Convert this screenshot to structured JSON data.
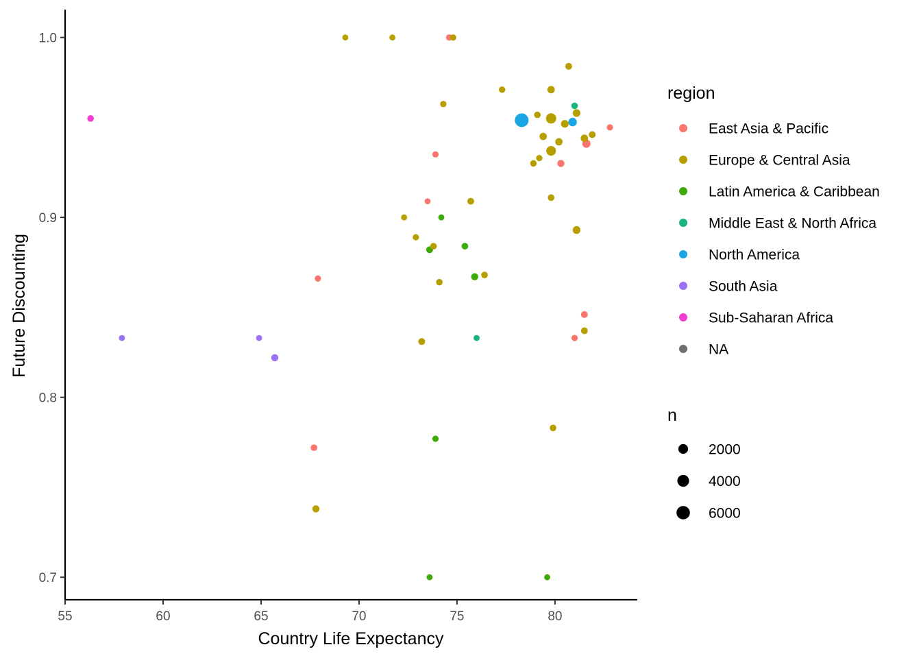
{
  "chart_data": {
    "type": "scatter",
    "title": "",
    "xlabel": "Country Life Expectancy",
    "ylabel": "Future Discounting",
    "xlim": [
      55,
      84.2
    ],
    "ylim": [
      0.6875,
      1.0155
    ],
    "xticks": [
      55,
      60,
      65,
      70,
      75,
      80
    ],
    "yticks": [
      0.7,
      0.8,
      0.9,
      1.0
    ],
    "xtick_labels": [
      "55",
      "60",
      "65",
      "70",
      "75",
      "80"
    ],
    "ytick_labels": [
      "0.7",
      "0.8",
      "0.9",
      "1.0"
    ],
    "grid": false,
    "legend_position": "right",
    "color_legend": {
      "title": "region",
      "entries": [
        {
          "label": "East Asia & Pacific",
          "color": "#F8766D"
        },
        {
          "label": "Europe & Central Asia",
          "color": "#B79F00"
        },
        {
          "label": "Latin America & Caribbean",
          "color": "#3DAA0A"
        },
        {
          "label": "Middle East & North Africa",
          "color": "#17B57D"
        },
        {
          "label": "North America",
          "color": "#19A6E4"
        },
        {
          "label": "South Asia",
          "color": "#9D71F4"
        },
        {
          "label": "Sub-Saharan Africa",
          "color": "#F23DD2"
        },
        {
          "label": "NA",
          "color": "#6E6E6E"
        }
      ]
    },
    "size_legend": {
      "title": "n",
      "entries": [
        {
          "label": "2000",
          "value": 2000
        },
        {
          "label": "4000",
          "value": 4000
        },
        {
          "label": "6000",
          "value": 6000
        }
      ]
    },
    "points": [
      {
        "x": 56.3,
        "y": 0.955,
        "region": "Sub-Saharan Africa",
        "n": 300
      },
      {
        "x": 57.9,
        "y": 0.833,
        "region": "South Asia",
        "n": 150
      },
      {
        "x": 64.9,
        "y": 0.833,
        "region": "South Asia",
        "n": 150
      },
      {
        "x": 65.7,
        "y": 0.822,
        "region": "South Asia",
        "n": 500
      },
      {
        "x": 67.7,
        "y": 0.772,
        "region": "East Asia & Pacific",
        "n": 300
      },
      {
        "x": 67.8,
        "y": 0.738,
        "region": "Europe & Central Asia",
        "n": 500
      },
      {
        "x": 67.9,
        "y": 0.866,
        "region": "East Asia & Pacific",
        "n": 200
      },
      {
        "x": 69.3,
        "y": 1.0,
        "region": "Europe & Central Asia",
        "n": 150
      },
      {
        "x": 71.7,
        "y": 1.0,
        "region": "Europe & Central Asia",
        "n": 150
      },
      {
        "x": 72.3,
        "y": 0.9,
        "region": "Europe & Central Asia",
        "n": 150
      },
      {
        "x": 72.9,
        "y": 0.889,
        "region": "Europe & Central Asia",
        "n": 200
      },
      {
        "x": 73.2,
        "y": 0.831,
        "region": "Europe & Central Asia",
        "n": 400
      },
      {
        "x": 73.5,
        "y": 0.909,
        "region": "East Asia & Pacific",
        "n": 150
      },
      {
        "x": 73.6,
        "y": 0.882,
        "region": "Latin America & Caribbean",
        "n": 400
      },
      {
        "x": 73.6,
        "y": 0.7,
        "region": "Latin America & Caribbean",
        "n": 150
      },
      {
        "x": 73.8,
        "y": 0.884,
        "region": "Europe & Central Asia",
        "n": 300
      },
      {
        "x": 73.9,
        "y": 0.935,
        "region": "East Asia & Pacific",
        "n": 200
      },
      {
        "x": 73.9,
        "y": 0.777,
        "region": "Latin America & Caribbean",
        "n": 200
      },
      {
        "x": 74.1,
        "y": 0.864,
        "region": "Europe & Central Asia",
        "n": 300
      },
      {
        "x": 74.2,
        "y": 0.9,
        "region": "Latin America & Caribbean",
        "n": 150
      },
      {
        "x": 74.3,
        "y": 0.963,
        "region": "Europe & Central Asia",
        "n": 250
      },
      {
        "x": 74.6,
        "y": 1.0,
        "region": "East Asia & Pacific",
        "n": 200
      },
      {
        "x": 74.8,
        "y": 1.0,
        "region": "Europe & Central Asia",
        "n": 200
      },
      {
        "x": 75.4,
        "y": 0.884,
        "region": "Latin America & Caribbean",
        "n": 300
      },
      {
        "x": 75.7,
        "y": 0.909,
        "region": "Europe & Central Asia",
        "n": 400
      },
      {
        "x": 75.9,
        "y": 0.867,
        "region": "Latin America & Caribbean",
        "n": 500
      },
      {
        "x": 76.0,
        "y": 0.833,
        "region": "Middle East & North Africa",
        "n": 150
      },
      {
        "x": 76.4,
        "y": 0.868,
        "region": "Europe & Central Asia",
        "n": 300
      },
      {
        "x": 77.3,
        "y": 0.971,
        "region": "Europe & Central Asia",
        "n": 250
      },
      {
        "x": 78.3,
        "y": 0.954,
        "region": "North America",
        "n": 6500
      },
      {
        "x": 78.9,
        "y": 0.93,
        "region": "Europe & Central Asia",
        "n": 300
      },
      {
        "x": 79.1,
        "y": 0.957,
        "region": "Europe & Central Asia",
        "n": 300
      },
      {
        "x": 79.2,
        "y": 0.933,
        "region": "Europe & Central Asia",
        "n": 200
      },
      {
        "x": 79.4,
        "y": 0.945,
        "region": "Europe & Central Asia",
        "n": 600
      },
      {
        "x": 79.6,
        "y": 0.7,
        "region": "Latin America & Caribbean",
        "n": 150
      },
      {
        "x": 79.8,
        "y": 0.955,
        "region": "Europe & Central Asia",
        "n": 2500
      },
      {
        "x": 79.8,
        "y": 0.937,
        "region": "Europe & Central Asia",
        "n": 2000
      },
      {
        "x": 79.8,
        "y": 0.971,
        "region": "Europe & Central Asia",
        "n": 600
      },
      {
        "x": 79.8,
        "y": 0.911,
        "region": "Europe & Central Asia",
        "n": 300
      },
      {
        "x": 79.9,
        "y": 0.783,
        "region": "Europe & Central Asia",
        "n": 300
      },
      {
        "x": 80.2,
        "y": 0.942,
        "region": "Europe & Central Asia",
        "n": 600
      },
      {
        "x": 80.3,
        "y": 0.93,
        "region": "East Asia & Pacific",
        "n": 500
      },
      {
        "x": 80.5,
        "y": 0.952,
        "region": "Europe & Central Asia",
        "n": 700
      },
      {
        "x": 80.7,
        "y": 0.984,
        "region": "Europe & Central Asia",
        "n": 400
      },
      {
        "x": 80.9,
        "y": 0.953,
        "region": "North America",
        "n": 1200
      },
      {
        "x": 81.0,
        "y": 0.962,
        "region": "Middle East & North Africa",
        "n": 300
      },
      {
        "x": 81.0,
        "y": 0.833,
        "region": "East Asia & Pacific",
        "n": 200
      },
      {
        "x": 81.1,
        "y": 0.958,
        "region": "Europe & Central Asia",
        "n": 700
      },
      {
        "x": 81.1,
        "y": 0.893,
        "region": "Europe & Central Asia",
        "n": 800
      },
      {
        "x": 81.5,
        "y": 0.846,
        "region": "East Asia & Pacific",
        "n": 400
      },
      {
        "x": 81.5,
        "y": 0.837,
        "region": "Europe & Central Asia",
        "n": 400
      },
      {
        "x": 81.5,
        "y": 0.944,
        "region": "Europe & Central Asia",
        "n": 600
      },
      {
        "x": 81.6,
        "y": 0.941,
        "region": "East Asia & Pacific",
        "n": 1000
      },
      {
        "x": 81.9,
        "y": 0.946,
        "region": "Europe & Central Asia",
        "n": 400
      },
      {
        "x": 82.8,
        "y": 0.95,
        "region": "East Asia & Pacific",
        "n": 200
      }
    ]
  }
}
